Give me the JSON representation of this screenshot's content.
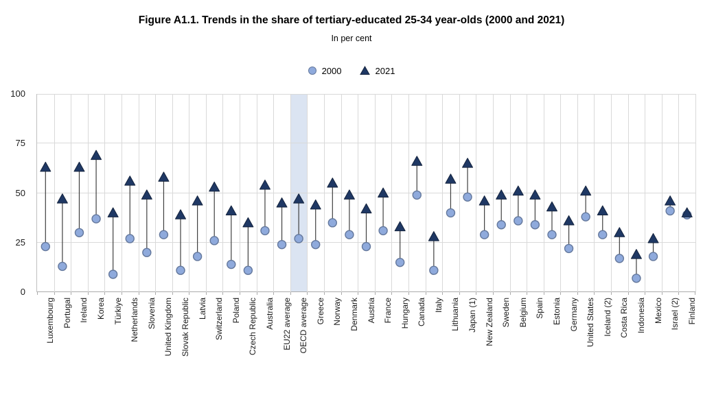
{
  "title": "Figure A1.1. Trends in the share of tertiary-educated 25-34 year-olds (2000 and 2021)",
  "subtitle": "In per cent",
  "legend": {
    "items": [
      {
        "label": "2000",
        "marker": "circle"
      },
      {
        "label": "2021",
        "marker": "triangle"
      }
    ]
  },
  "colors": {
    "circle_fill": "#8faadc",
    "circle_stroke": "#64789c",
    "triangle_fill": "#1f3864",
    "triangle_stroke": "#14233d",
    "connector": "#3f3f3f",
    "gridline": "#d9d9d9",
    "axis": "#ababab",
    "highlight_band": "#dbe4f2"
  },
  "chart_data": {
    "type": "scatter",
    "subtype": "dumbbell",
    "title": "Figure A1.1. Trends in the share of tertiary-educated 25-34 year-olds (2000 and 2021)",
    "subtitle": "In per cent",
    "xlabel": "",
    "ylabel": "",
    "ylim": [
      0,
      100
    ],
    "yticks": [
      0,
      25,
      50,
      75,
      100
    ],
    "grid": true,
    "legend_position": "top",
    "highlight_category": "OECD average",
    "categories": [
      "Luxembourg",
      "Portugal",
      "Ireland",
      "Korea",
      "Türkiye",
      "Netherlands",
      "Slovenia",
      "United Kingdom",
      "Slovak Republic",
      "Latvia",
      "Switzerland",
      "Poland",
      "Czech Republic",
      "Australia",
      "EU22 average",
      "OECD average",
      "Greece",
      "Norway",
      "Denmark",
      "Austria",
      "France",
      "Hungary",
      "Canada",
      "Italy",
      "Lithuania",
      "Japan (1)",
      "New Zealand",
      "Sweden",
      "Belgium",
      "Spain",
      "Estonia",
      "Germany",
      "United States",
      "Iceland (2)",
      "Costa Rica",
      "Indonesia",
      "Mexico",
      "Israel (2)",
      "Finland"
    ],
    "series": [
      {
        "name": "2000",
        "marker": "circle",
        "values": [
          23,
          13,
          30,
          37,
          9,
          27,
          20,
          29,
          11,
          18,
          26,
          14,
          11,
          31,
          24,
          27,
          24,
          35,
          29,
          23,
          31,
          15,
          49,
          11,
          40,
          48,
          29,
          34,
          36,
          34,
          29,
          22,
          38,
          29,
          17,
          7,
          18,
          41,
          39
        ]
      },
      {
        "name": "2021",
        "marker": "triangle",
        "values": [
          63,
          47,
          63,
          69,
          40,
          56,
          49,
          58,
          39,
          46,
          53,
          41,
          35,
          54,
          45,
          47,
          44,
          55,
          49,
          42,
          50,
          33,
          66,
          28,
          57,
          65,
          46,
          49,
          51,
          49,
          43,
          36,
          51,
          41,
          30,
          19,
          27,
          46,
          40
        ]
      }
    ]
  }
}
